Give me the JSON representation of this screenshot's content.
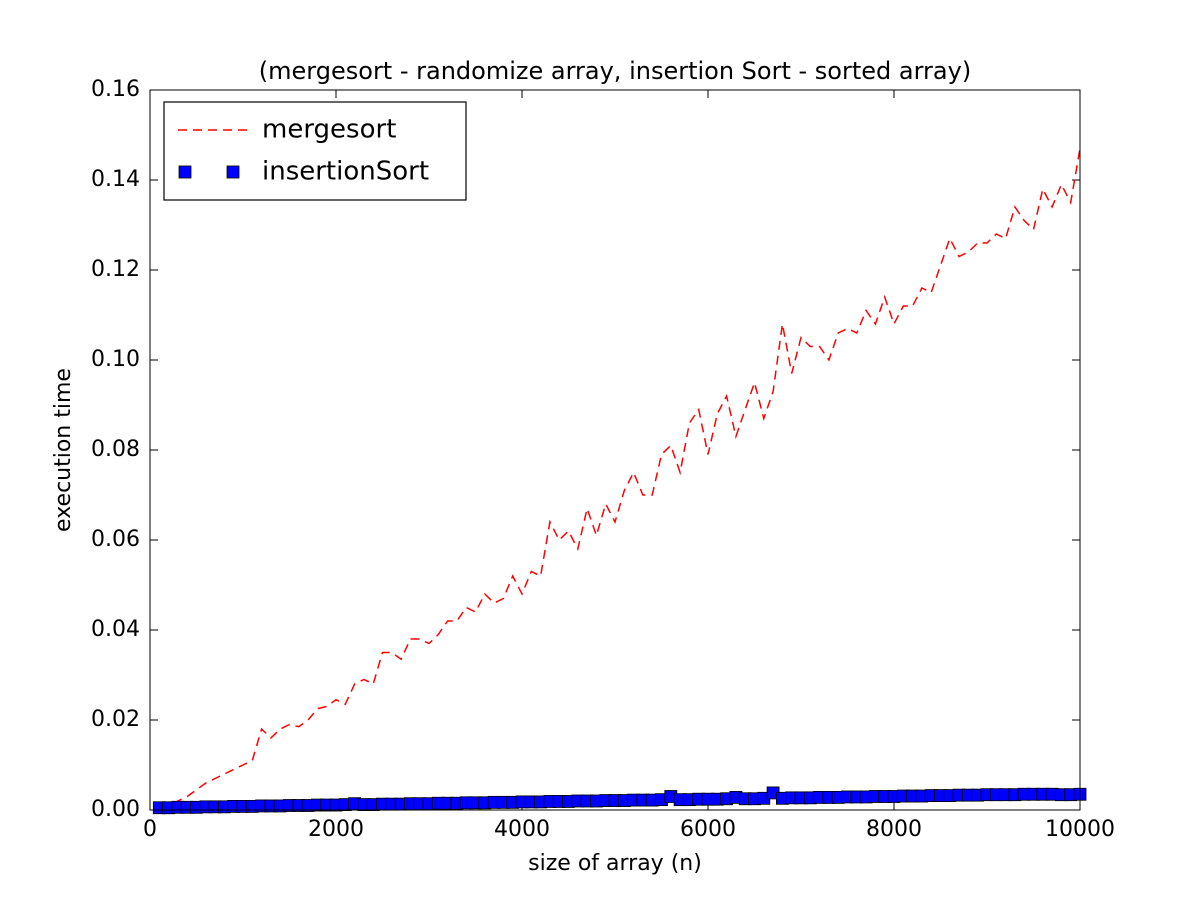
{
  "chart_data": {
    "type": "line",
    "title": "(mergesort - randomize array, insertion Sort - sorted array)",
    "x_label": "size of array (n)",
    "y_label": "execution time",
    "x": [
      100,
      200,
      300,
      400,
      500,
      600,
      700,
      800,
      900,
      1000,
      1100,
      1200,
      1300,
      1400,
      1500,
      1600,
      1700,
      1800,
      1900,
      2000,
      2100,
      2200,
      2300,
      2400,
      2500,
      2600,
      2700,
      2800,
      2900,
      3000,
      3100,
      3200,
      3300,
      3400,
      3500,
      3600,
      3700,
      3800,
      3900,
      4000,
      4100,
      4200,
      4300,
      4400,
      4500,
      4600,
      4700,
      4800,
      4900,
      5000,
      5100,
      5200,
      5300,
      5400,
      5500,
      5600,
      5700,
      5800,
      5900,
      6000,
      6100,
      6200,
      6300,
      6400,
      6500,
      6600,
      6700,
      6800,
      6900,
      7000,
      7100,
      7200,
      7300,
      7400,
      7500,
      7600,
      7700,
      7800,
      7900,
      8000,
      8100,
      8200,
      8300,
      8400,
      8500,
      8600,
      8700,
      8800,
      8900,
      9000,
      9100,
      9200,
      9300,
      9400,
      9500,
      9600,
      9700,
      9800,
      9900,
      10000
    ],
    "series": [
      {
        "name": "mergesort",
        "color": "#ff0000",
        "style": "dashed",
        "values": [
          0.0005,
          0.001,
          0.002,
          0.003,
          0.0045,
          0.006,
          0.007,
          0.008,
          0.009,
          0.01,
          0.011,
          0.018,
          0.016,
          0.018,
          0.019,
          0.0185,
          0.02,
          0.0225,
          0.023,
          0.0245,
          0.0235,
          0.028,
          0.029,
          0.028,
          0.035,
          0.035,
          0.0335,
          0.038,
          0.038,
          0.037,
          0.039,
          0.042,
          0.042,
          0.045,
          0.044,
          0.048,
          0.046,
          0.047,
          0.052,
          0.048,
          0.053,
          0.052,
          0.064,
          0.06,
          0.062,
          0.058,
          0.067,
          0.061,
          0.068,
          0.064,
          0.071,
          0.075,
          0.07,
          0.07,
          0.079,
          0.081,
          0.075,
          0.086,
          0.089,
          0.079,
          0.088,
          0.092,
          0.083,
          0.089,
          0.095,
          0.087,
          0.093,
          0.108,
          0.097,
          0.105,
          0.103,
          0.103,
          0.1,
          0.106,
          0.107,
          0.106,
          0.111,
          0.108,
          0.114,
          0.108,
          0.112,
          0.112,
          0.116,
          0.115,
          0.121,
          0.127,
          0.123,
          0.124,
          0.126,
          0.126,
          0.128,
          0.127,
          0.134,
          0.131,
          0.129,
          0.138,
          0.134,
          0.139,
          0.135,
          0.147
        ]
      },
      {
        "name": "insertionSort",
        "color": "#0000ff",
        "style": "square",
        "values": [
          0.0005,
          0.0005,
          0.0006,
          0.0006,
          0.0006,
          0.0007,
          0.0007,
          0.0007,
          0.0008,
          0.0008,
          0.0008,
          0.0009,
          0.0009,
          0.0009,
          0.001,
          0.001,
          0.001,
          0.0011,
          0.0011,
          0.0011,
          0.0012,
          0.0014,
          0.0012,
          0.0012,
          0.0013,
          0.0013,
          0.0013,
          0.0014,
          0.0014,
          0.0014,
          0.0015,
          0.0015,
          0.0015,
          0.0016,
          0.0016,
          0.0016,
          0.0017,
          0.0017,
          0.0017,
          0.0018,
          0.0018,
          0.0018,
          0.0019,
          0.0019,
          0.0019,
          0.002,
          0.002,
          0.002,
          0.0021,
          0.0021,
          0.0021,
          0.0022,
          0.0022,
          0.0022,
          0.0023,
          0.003,
          0.0023,
          0.0023,
          0.0024,
          0.0024,
          0.0024,
          0.0025,
          0.0028,
          0.0025,
          0.0025,
          0.0026,
          0.0038,
          0.0026,
          0.0027,
          0.0027,
          0.0027,
          0.0028,
          0.0028,
          0.0028,
          0.0029,
          0.0029,
          0.0029,
          0.003,
          0.003,
          0.003,
          0.0031,
          0.0031,
          0.0031,
          0.0032,
          0.0032,
          0.0032,
          0.0033,
          0.0033,
          0.0033,
          0.0034,
          0.0034,
          0.0034,
          0.0034,
          0.0035,
          0.0035,
          0.0035,
          0.0035,
          0.0034,
          0.0034,
          0.0035
        ]
      }
    ],
    "xlim": [
      0,
      10000
    ],
    "xticks": [
      0,
      2000,
      4000,
      6000,
      8000,
      10000
    ],
    "ylim": [
      0,
      0.16
    ],
    "yticks": [
      {
        "value": 0,
        "label": "0.00"
      },
      {
        "value": 0.02,
        "label": "0.02"
      },
      {
        "value": 0.04,
        "label": "0.04"
      },
      {
        "value": 0.06,
        "label": "0.06"
      },
      {
        "value": 0.08,
        "label": "0.08"
      },
      {
        "value": 0.1,
        "label": "0.10"
      },
      {
        "value": 0.12,
        "label": "0.12"
      },
      {
        "value": 0.14,
        "label": "0.14"
      },
      {
        "value": 0.16,
        "label": "0.16"
      }
    ],
    "legend": "upper left",
    "grid": false
  }
}
